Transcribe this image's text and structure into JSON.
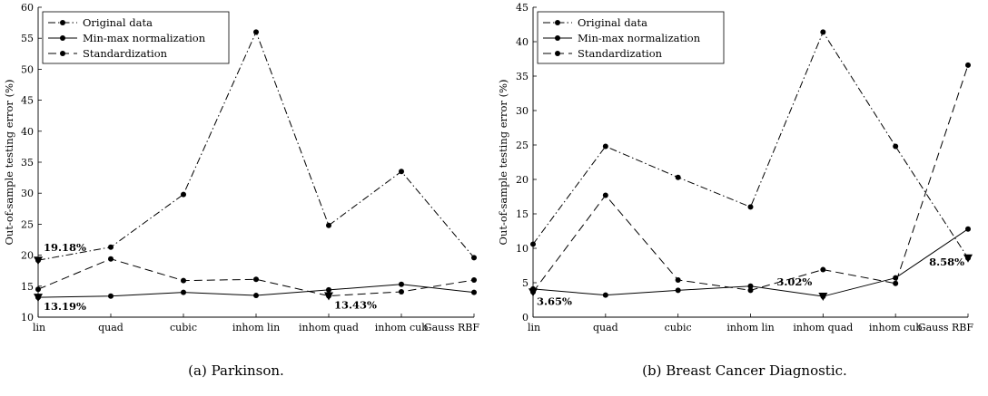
{
  "chart_data": [
    {
      "type": "line",
      "caption": "(a) Parkinson.",
      "ylabel": "Out-of-sample testing error (%)",
      "ylim": [
        10,
        60
      ],
      "yticks": [
        10,
        15,
        20,
        25,
        30,
        35,
        40,
        45,
        50,
        55,
        60
      ],
      "categories": [
        "lin",
        "quad",
        "cubic",
        "inhom lin",
        "inhom quad",
        "inhom cub",
        "Gauss RBF"
      ],
      "legend_position": "top-left",
      "series": [
        {
          "name": "Original data",
          "style": "dashdot",
          "values": [
            19.18,
            21.3,
            29.8,
            56.0,
            24.8,
            33.5,
            19.6
          ]
        },
        {
          "name": "Min-max normalization",
          "style": "solid",
          "values": [
            13.19,
            13.4,
            14.0,
            13.5,
            14.4,
            15.3,
            14.0
          ]
        },
        {
          "name": "Standardization",
          "style": "dashed",
          "values": [
            14.5,
            19.4,
            15.9,
            16.1,
            13.43,
            14.1,
            16.0
          ]
        }
      ],
      "annotations": [
        {
          "text": "19.18%",
          "category": "lin",
          "value": 19.18
        },
        {
          "text": "13.19%",
          "category": "lin",
          "value": 13.19
        },
        {
          "text": "13.43%",
          "category": "inhom quad",
          "value": 13.43
        }
      ]
    },
    {
      "type": "line",
      "caption": "(b) Breast Cancer Diagnostic.",
      "ylabel": "Out-of-sample testing error (%)",
      "ylim": [
        0,
        45
      ],
      "yticks": [
        0,
        5,
        10,
        15,
        20,
        25,
        30,
        35,
        40,
        45
      ],
      "categories": [
        "lin",
        "quad",
        "cubic",
        "inhom lin",
        "inhom quad",
        "inhom cub",
        "Gauss RBF"
      ],
      "legend_position": "top-left",
      "series": [
        {
          "name": "Original data",
          "style": "dashdot",
          "values": [
            10.6,
            24.8,
            20.3,
            16.0,
            41.4,
            24.8,
            8.58
          ]
        },
        {
          "name": "Min-max normalization",
          "style": "solid",
          "values": [
            4.1,
            3.2,
            3.9,
            4.5,
            3.02,
            5.7,
            12.8
          ]
        },
        {
          "name": "Standardization",
          "style": "dashed",
          "values": [
            3.65,
            17.7,
            5.4,
            3.9,
            6.9,
            4.9,
            36.6
          ]
        }
      ],
      "annotations": [
        {
          "text": "3.65%",
          "category": "lin",
          "value": 3.65
        },
        {
          "text": "3.02%",
          "category": "inhom quad",
          "value": 3.02
        },
        {
          "text": "8.58%",
          "category": "Gauss RBF",
          "value": 8.58
        }
      ]
    }
  ]
}
